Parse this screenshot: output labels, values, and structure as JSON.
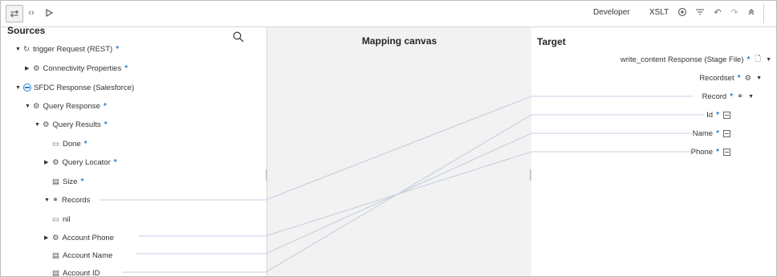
{
  "toolbar": {
    "left_icons": [
      "swap-icon",
      "code-icon",
      "play-icon"
    ],
    "developer_label": "Developer",
    "xslt_label": "XSLT",
    "right_icons": [
      "view-icon",
      "filter-icon",
      "undo-icon",
      "redo-icon",
      "collapse-icon"
    ]
  },
  "panels": {
    "sources_title": "Sources",
    "canvas_title": "Mapping canvas",
    "target_title": "Target"
  },
  "sources": {
    "trigger": "trigger Request (REST)",
    "connectivity": "Connectivity Properties",
    "sfdc": "SFDC Response (Salesforce)",
    "query_response": "Query Response",
    "query_results": "Query Results",
    "done": "Done",
    "query_locator": "Query Locator",
    "size": "Size",
    "records": "Records",
    "nil": "nil",
    "account_phone": "Account Phone",
    "account_name": "Account Name",
    "account_id": "Account ID"
  },
  "target": {
    "write_content": "write_content Response (Stage File)",
    "recordset": "Recordset",
    "record": "Record",
    "id": "Id",
    "name": "Name",
    "phone": "Phone"
  },
  "required_marker": "*",
  "colors": {
    "accent": "#2a7fd4",
    "canvas_bg": "#f2f2f2",
    "mapping_line": "#c9d3e3"
  }
}
